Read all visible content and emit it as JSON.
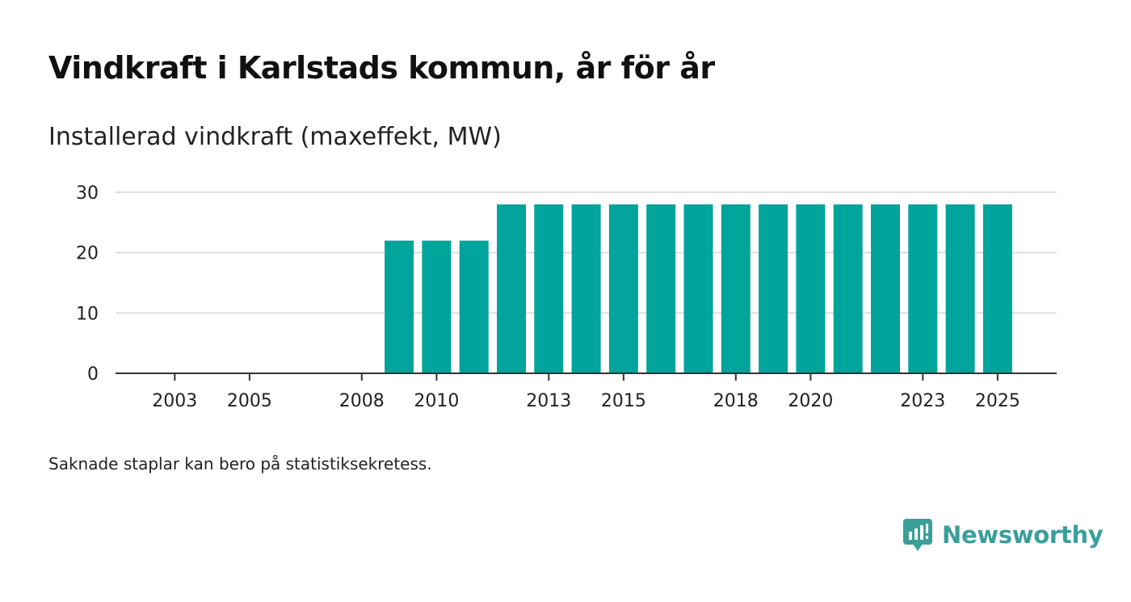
{
  "header": {
    "title": "Vindkraft i Karlstads kommun, år för år"
  },
  "chart_data": {
    "type": "bar",
    "title": "Vindkraft i Karlstads kommun, år för år",
    "subtitle": "Installerad vindkraft (maxeffekt, MW)",
    "xlabel": "",
    "ylabel": "Installerad vindkraft (maxeffekt, MW)",
    "categories": [
      "2002",
      "2003",
      "2004",
      "2005",
      "2006",
      "2007",
      "2008",
      "2009",
      "2010",
      "2011",
      "2012",
      "2013",
      "2014",
      "2015",
      "2016",
      "2017",
      "2018",
      "2019",
      "2020",
      "2021",
      "2022",
      "2023",
      "2024",
      "2025"
    ],
    "values": [
      0,
      0,
      0,
      0,
      0,
      0,
      0,
      22,
      22,
      22,
      28,
      28,
      28,
      28,
      28,
      28,
      28,
      28,
      28,
      28,
      28,
      28,
      28,
      28
    ],
    "x_tick_labels": [
      "2003",
      "2005",
      "2008",
      "2010",
      "2013",
      "2015",
      "2018",
      "2020",
      "2023",
      "2025"
    ],
    "y_ticks": [
      0,
      10,
      20,
      30
    ],
    "ylim": [
      0,
      30
    ],
    "grid": true,
    "bar_color": "#00a49a"
  },
  "footer": {
    "note": "Saknade staplar kan bero på statistiksekretess.",
    "brand": "Newsworthy",
    "brand_color": "#3a9f9a"
  }
}
